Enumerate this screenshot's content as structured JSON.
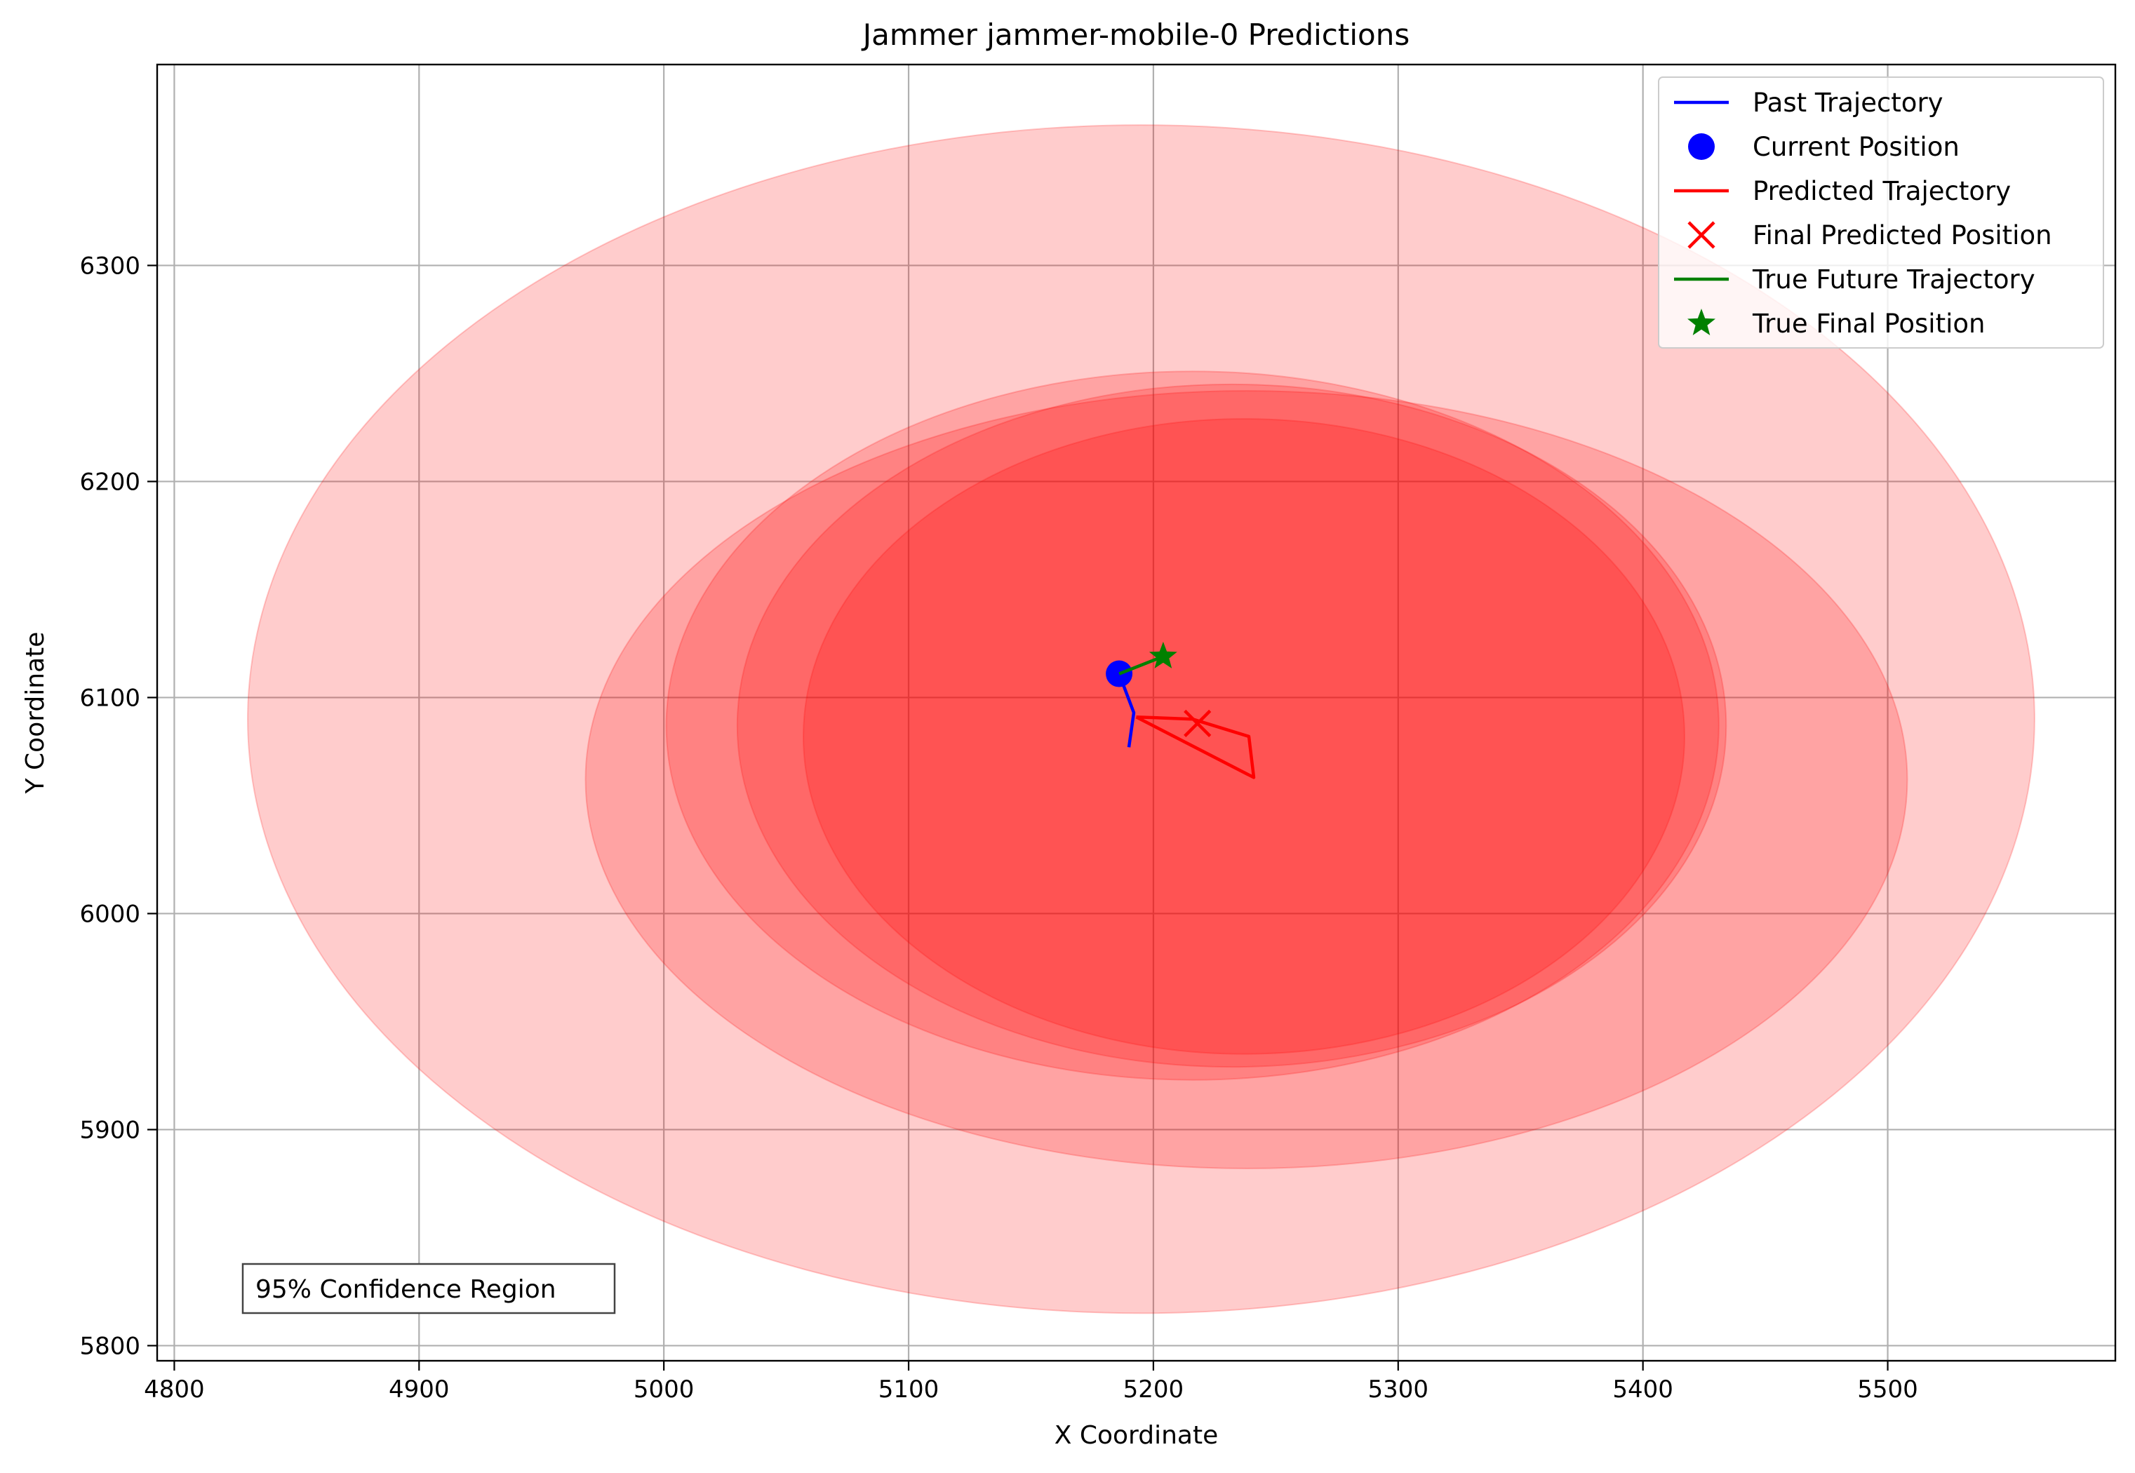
{
  "chart_data": {
    "type": "scatter",
    "title": "Jammer jammer-mobile-0 Predictions",
    "xlabel": "X Coordinate",
    "ylabel": "Y Coordinate",
    "xlim": [
      4793,
      5593
    ],
    "ylim": [
      5793,
      6393
    ],
    "xticks": [
      4800,
      4900,
      5000,
      5100,
      5200,
      5300,
      5400,
      5500
    ],
    "yticks": [
      5800,
      5900,
      6000,
      6100,
      6200,
      6300
    ],
    "grid": true,
    "legend_position": "top-right",
    "series": [
      {
        "name": "Past Trajectory",
        "kind": "line",
        "color": "#0000ff",
        "points": [
          [
            5190,
            6077
          ],
          [
            5192,
            6093
          ],
          [
            5186,
            6111
          ]
        ]
      },
      {
        "name": "Current Position",
        "kind": "marker",
        "marker": "circle",
        "color": "#0000ff",
        "points": [
          [
            5186,
            6111
          ]
        ]
      },
      {
        "name": "Predicted Trajectory",
        "kind": "line",
        "color": "#ff0000",
        "points": [
          [
            5193,
            6091
          ],
          [
            5216,
            6090
          ],
          [
            5239,
            6082
          ],
          [
            5241,
            6063
          ],
          [
            5193,
            6091
          ]
        ]
      },
      {
        "name": "Final Predicted Position",
        "kind": "marker",
        "marker": "x",
        "color": "#ff0000",
        "points": [
          [
            5218,
            6088
          ]
        ]
      },
      {
        "name": "True Future Trajectory",
        "kind": "line",
        "color": "#008000",
        "points": [
          [
            5186,
            6111
          ],
          [
            5204,
            6119
          ]
        ]
      },
      {
        "name": "True Final Position",
        "kind": "marker",
        "marker": "star",
        "color": "#008000",
        "points": [
          [
            5204,
            6119
          ]
        ]
      }
    ],
    "confidence_ellipses": [
      {
        "cx": 5195,
        "cy": 6090,
        "rx": 365,
        "ry": 275
      },
      {
        "cx": 5238,
        "cy": 6062,
        "rx": 270,
        "ry": 180
      },
      {
        "cx": 5216,
        "cy": 6087,
        "rx": 215,
        "ry": 164
      },
      {
        "cx": 5232,
        "cy": 6087,
        "rx": 202,
        "ry": 158
      },
      {
        "cx": 5237,
        "cy": 6082,
        "rx": 180,
        "ry": 147
      }
    ],
    "ellipse_color": "#ff0000",
    "ellipse_opacity": 0.2,
    "annotations": [
      {
        "text": "95% Confidence Region",
        "position": "bottom-left"
      }
    ]
  }
}
